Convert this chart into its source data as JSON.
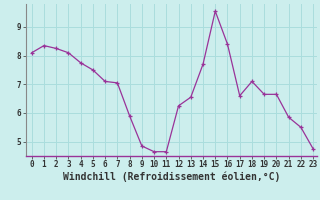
{
  "x": [
    0,
    1,
    2,
    3,
    4,
    5,
    6,
    7,
    8,
    9,
    10,
    11,
    12,
    13,
    14,
    15,
    16,
    17,
    18,
    19,
    20,
    21,
    22,
    23
  ],
  "y": [
    8.1,
    8.35,
    8.25,
    8.1,
    7.75,
    7.5,
    7.1,
    7.05,
    5.9,
    4.85,
    4.65,
    4.65,
    6.25,
    6.55,
    7.7,
    9.55,
    8.4,
    6.6,
    7.1,
    6.65,
    6.65,
    5.85,
    5.5,
    4.75
  ],
  "line_color": "#993399",
  "marker": "+",
  "marker_size": 3,
  "bg_color": "#cceeed",
  "grid_color": "#aadddd",
  "xlabel": "Windchill (Refroidissement éolien,°C)",
  "ylabel": "",
  "xlim": [
    -0.5,
    23.3
  ],
  "ylim": [
    4.5,
    9.8
  ],
  "yticks": [
    5,
    6,
    7,
    8,
    9
  ],
  "xticks": [
    0,
    1,
    2,
    3,
    4,
    5,
    6,
    7,
    8,
    9,
    10,
    11,
    12,
    13,
    14,
    15,
    16,
    17,
    18,
    19,
    20,
    21,
    22,
    23
  ],
  "left_spine_color": "#888888",
  "bottom_spine_color": "#993399",
  "tick_color": "#333333",
  "label_fontsize": 6.5,
  "tick_fontsize": 5.5,
  "xlabel_fontsize": 7.0
}
